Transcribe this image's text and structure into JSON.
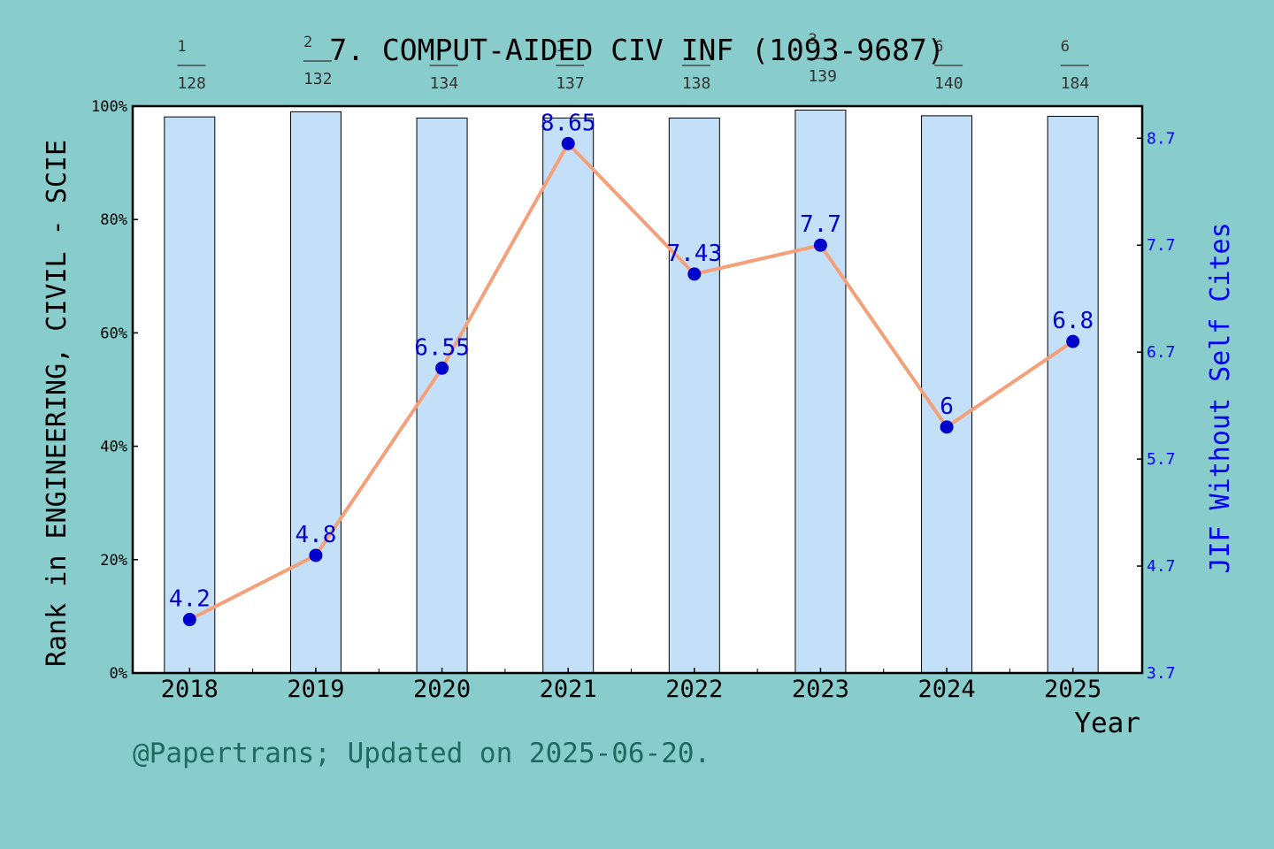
{
  "chart_data": {
    "type": "bar+line",
    "title": "7. COMPUT-AIDED CIV INF (1093-9687)",
    "xlabel": "Year",
    "ylabel_left": "Rank in ENGINEERING, CIVIL - SCIE",
    "ylabel_right": "JIF Without Self Cites",
    "categories": [
      "2018",
      "2019",
      "2020",
      "2021",
      "2022",
      "2023",
      "2024",
      "2025"
    ],
    "left_axis": {
      "ylim": [
        0,
        100
      ],
      "ticks": [
        "0%",
        "20%",
        "40%",
        "60%",
        "80%",
        "100%"
      ]
    },
    "right_axis": {
      "ylim": [
        3.7,
        9.0
      ],
      "ticks": [
        "3.7",
        "4.7",
        "5.7",
        "6.7",
        "7.7",
        "8.7"
      ]
    },
    "bars": {
      "name": "Category total",
      "values_percent": [
        98.1,
        99.0,
        97.9,
        97.9,
        97.9,
        99.3,
        98.3,
        98.2
      ],
      "color": "#c4e0f8"
    },
    "line": {
      "name": "JIF Without Self Cites",
      "values": [
        4.2,
        4.8,
        6.55,
        8.65,
        7.43,
        7.7,
        6.0,
        6.8
      ],
      "labels": [
        "4.2",
        "4.8",
        "6.55",
        "8.65",
        "7.43",
        "7.7",
        "6",
        "6.8"
      ],
      "color": "#f4a07a",
      "marker_color": "#0000cc"
    },
    "rank_fractions": [
      {
        "rank": "1",
        "total": "128"
      },
      {
        "rank": "2",
        "total": "132"
      },
      {
        "rank": "",
        "total": "134"
      },
      {
        "rank": "1",
        "total": "137"
      },
      {
        "rank": "",
        "total": "138"
      },
      {
        "rank": "3",
        "total": "139"
      },
      {
        "rank": "6",
        "total": "140"
      },
      {
        "rank": "6",
        "total": "184"
      }
    ],
    "grid": false,
    "colors": {
      "background": "#88cccc",
      "plot_bg": "#ffffff",
      "right_axis": "#0000ff",
      "credit": "#1f6b5f"
    }
  },
  "credit": "@Papertrans; Updated on 2025-06-20."
}
